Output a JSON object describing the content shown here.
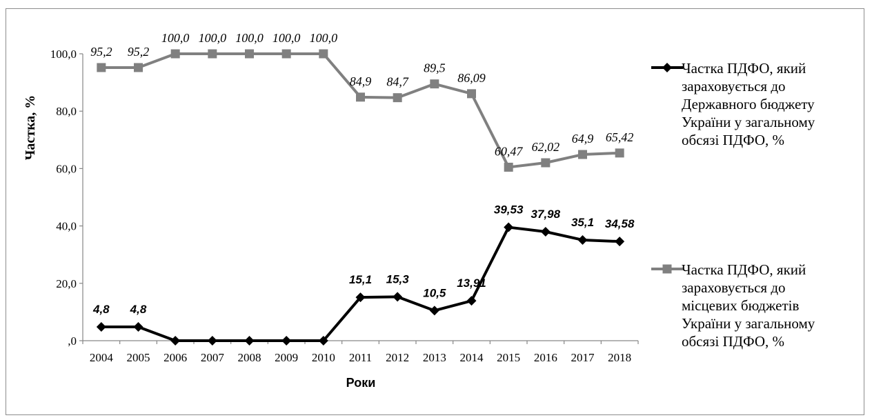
{
  "chart_data": {
    "type": "line",
    "title": "",
    "xlabel": "Роки",
    "ylabel": "Частка, %",
    "ylim": [
      0,
      100
    ],
    "yticks": [
      ",0",
      "20,0",
      "40,0",
      "60,0",
      "80,0",
      "100,0"
    ],
    "categories": [
      "2004",
      "2005",
      "2006",
      "2007",
      "2008",
      "2009",
      "2010",
      "2011",
      "2012",
      "2013",
      "2014",
      "2015",
      "2016",
      "2017",
      "2018"
    ],
    "series": [
      {
        "name": "Частка ПДФО, який зараховується до Державного бюджету України у загальному обсязі ПДФО, %",
        "legend_lines": [
          "Частка ПДФО, який",
          "зараховується до",
          "Державного бюджету",
          "України у загальному",
          "обсязі ПДФО, %"
        ],
        "color": "#000000",
        "marker": "diamond",
        "values": [
          4.8,
          4.8,
          0,
          0,
          0,
          0,
          0,
          15.1,
          15.3,
          10.5,
          13.91,
          39.53,
          37.98,
          35.1,
          34.58
        ],
        "labels": [
          "4,8",
          "4,8",
          "",
          "",
          "",
          "",
          "",
          "15,1",
          "15,3",
          "10,5",
          "13,91",
          "39,53",
          "37,98",
          "35,1",
          "34,58"
        ]
      },
      {
        "name": "Частка ПДФО, який зараховується до місцевих бюджетів України у загальному обсязі ПДФО, %",
        "legend_lines": [
          "Частка ПДФО, який",
          "зараховується до",
          "місцевих бюджетів",
          "України у загальному",
          "обсязі ПДФО, %"
        ],
        "color": "#808080",
        "marker": "square",
        "values": [
          95.2,
          95.2,
          100,
          100,
          100,
          100,
          100,
          84.9,
          84.7,
          89.5,
          86.09,
          60.47,
          62.02,
          64.9,
          65.42
        ],
        "labels": [
          "95,2",
          "95,2",
          "100,0",
          "100,0",
          "100,0",
          "100,0",
          "100,0",
          "84,9",
          "84,7",
          "89,5",
          "86,09",
          "60,47",
          "62,02",
          "64,9",
          "65,42"
        ]
      }
    ],
    "legend_position": "right",
    "grid": false
  }
}
